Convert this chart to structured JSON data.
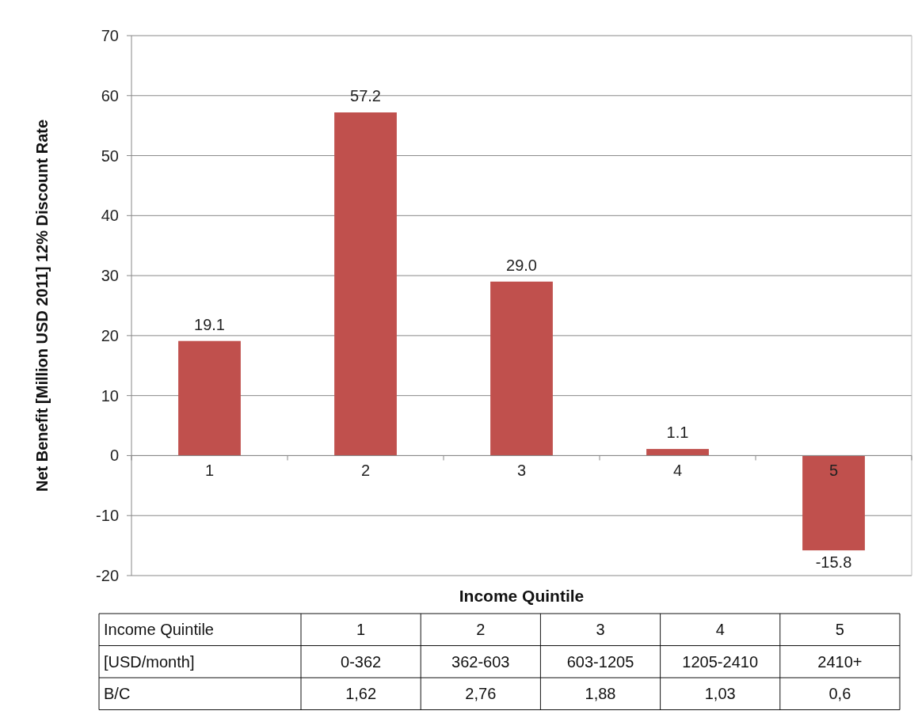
{
  "chart_data": {
    "type": "bar",
    "xlabel": "Income Quintile",
    "ylabel": "Net Benefit [Million USD 2011] 12% Discount Rate",
    "categories": [
      "1",
      "2",
      "3",
      "4",
      "5"
    ],
    "values": [
      19.1,
      57.2,
      29.0,
      1.1,
      -15.8
    ],
    "value_labels": [
      "19.1",
      "57.2",
      "29.0",
      "1.1",
      "-15.8"
    ],
    "color": "#c0504d",
    "ylim": [
      -20,
      70
    ],
    "yticks": [
      -20,
      -10,
      0,
      10,
      20,
      30,
      40,
      50,
      60,
      70
    ],
    "grid": "y",
    "annotations": [
      "Income Quintile",
      "1",
      "2",
      "3",
      "4",
      "5",
      "[USD/month]",
      "0-362",
      "362-603",
      "603-1205",
      "1205-2410",
      "2410+",
      "B/C",
      "1,62",
      "2,76",
      "1,88",
      "1,03",
      "0,6"
    ]
  }
}
